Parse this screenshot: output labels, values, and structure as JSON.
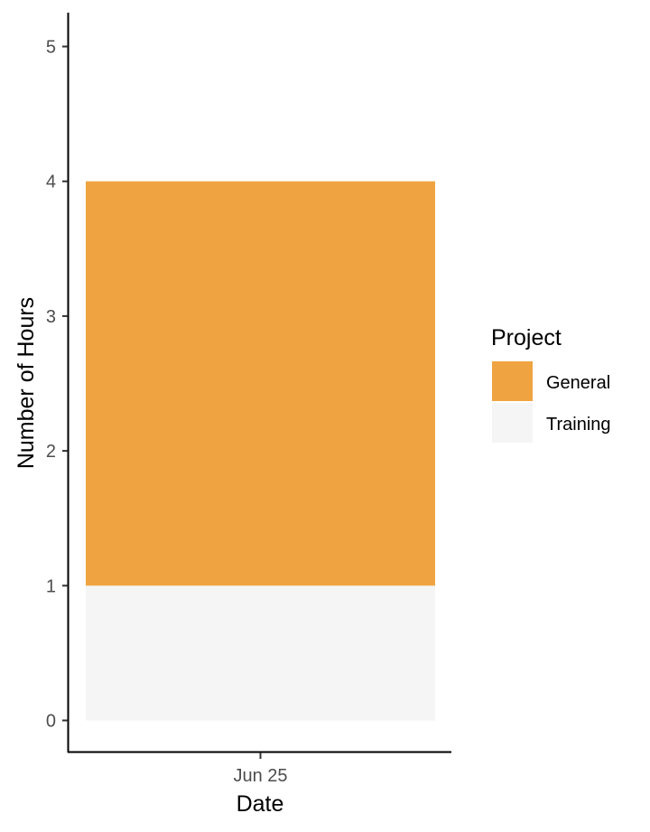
{
  "chart_data": {
    "type": "bar",
    "stacked": true,
    "categories": [
      "Jun 25"
    ],
    "series": [
      {
        "name": "Training",
        "values": [
          1
        ],
        "color": "#f5f5f5"
      },
      {
        "name": "General",
        "values": [
          3
        ],
        "color": "#f0a441"
      }
    ],
    "title": "",
    "xlabel": "Date",
    "ylabel": "Number of Hours",
    "ylim": [
      0,
      5
    ],
    "yticks": [
      "0",
      "1",
      "2",
      "3",
      "4",
      "5"
    ],
    "grid": false,
    "legend": {
      "title": "Project",
      "placement": "right",
      "entries": [
        "General",
        "Training"
      ]
    }
  }
}
